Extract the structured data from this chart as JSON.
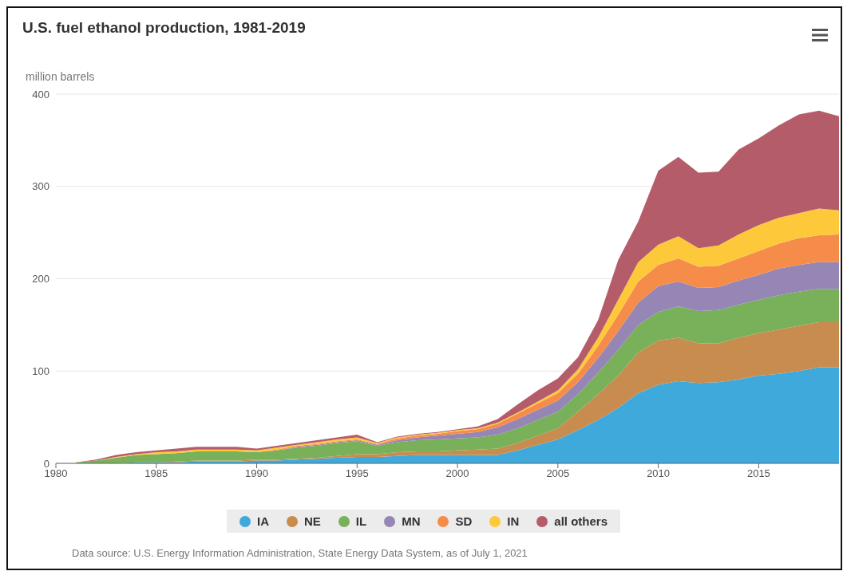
{
  "chart_data": {
    "type": "area",
    "title": "U.S. fuel ethanol production, 1981-2019",
    "ylabel": "million barrels",
    "stacked": true,
    "grid": "y",
    "legend": "bottom",
    "x": [
      1981,
      1982,
      1983,
      1984,
      1985,
      1986,
      1987,
      1988,
      1989,
      1990,
      1991,
      1992,
      1993,
      1994,
      1995,
      1996,
      1997,
      1998,
      1999,
      2000,
      2001,
      2002,
      2003,
      2004,
      2005,
      2006,
      2007,
      2008,
      2009,
      2010,
      2011,
      2012,
      2013,
      2014,
      2015,
      2016,
      2017,
      2018,
      2019
    ],
    "xlim": [
      1980,
      2019
    ],
    "xticks": [
      1980,
      1985,
      1990,
      1995,
      2000,
      2005,
      2010,
      2015
    ],
    "ylim": [
      0,
      400
    ],
    "yticks": [
      0,
      100,
      200,
      300,
      400
    ],
    "series": [
      {
        "name": "IA",
        "color": "#3fa9dc",
        "values": [
          0,
          0,
          0,
          1,
          1,
          1,
          2,
          2,
          2,
          3,
          3,
          4,
          5,
          6,
          7,
          7,
          8,
          9,
          9,
          9,
          9,
          9,
          14,
          20,
          26,
          36,
          47,
          60,
          76,
          85,
          89,
          87,
          88,
          91,
          95,
          97,
          100,
          104,
          104
        ]
      },
      {
        "name": "NE",
        "color": "#c98c4f",
        "values": [
          0,
          0,
          0,
          0,
          0,
          1,
          1,
          1,
          1,
          1,
          1,
          1,
          1,
          2,
          3,
          3,
          4,
          4,
          4,
          5,
          6,
          7,
          8,
          10,
          12,
          20,
          28,
          35,
          44,
          48,
          47,
          43,
          42,
          45,
          46,
          48,
          49,
          49,
          49
        ]
      },
      {
        "name": "IL",
        "color": "#79b05a",
        "values": [
          1,
          3,
          6,
          8,
          9,
          9,
          10,
          10,
          10,
          8,
          10,
          12,
          13,
          14,
          14,
          9,
          11,
          12,
          13,
          13,
          13,
          15,
          16,
          17,
          18,
          19,
          23,
          28,
          30,
          31,
          34,
          35,
          36,
          36,
          36,
          37,
          37,
          36,
          36
        ]
      },
      {
        "name": "MN",
        "color": "#9586b5",
        "values": [
          0,
          0,
          0,
          0,
          0,
          0,
          0,
          0,
          0,
          0,
          0,
          1,
          1,
          1,
          1,
          1,
          2,
          3,
          4,
          5,
          6,
          8,
          10,
          11,
          12,
          13,
          16,
          20,
          24,
          28,
          27,
          25,
          25,
          26,
          27,
          29,
          29,
          29,
          29
        ]
      },
      {
        "name": "SD",
        "color": "#f58c4a",
        "values": [
          0,
          0,
          0,
          0,
          0,
          0,
          0,
          0,
          0,
          0,
          1,
          1,
          1,
          1,
          1,
          1,
          2,
          2,
          2,
          3,
          3,
          4,
          6,
          7,
          8,
          9,
          13,
          18,
          23,
          23,
          25,
          23,
          23,
          24,
          26,
          27,
          29,
          29,
          30
        ]
      },
      {
        "name": "IN",
        "color": "#fdc93b",
        "values": [
          0,
          0,
          1,
          1,
          2,
          2,
          2,
          2,
          2,
          2,
          2,
          1,
          2,
          2,
          2,
          1,
          1,
          1,
          1,
          1,
          1,
          1,
          1,
          2,
          3,
          5,
          9,
          16,
          21,
          22,
          24,
          20,
          22,
          26,
          28,
          28,
          27,
          29,
          26
        ]
      },
      {
        "name": "all others",
        "color": "#b55c6a",
        "values": [
          0,
          1,
          2,
          2,
          2,
          3,
          3,
          3,
          3,
          2,
          2,
          2,
          2,
          2,
          3,
          1,
          1,
          1,
          1,
          1,
          2,
          4,
          9,
          12,
          13,
          13,
          19,
          43,
          44,
          80,
          86,
          82,
          80,
          92,
          94,
          100,
          107,
          106,
          102
        ]
      }
    ],
    "annotations": [
      "Data source: U.S. Energy Information Administration, State Energy Data System, as of July 1, 2021"
    ]
  }
}
